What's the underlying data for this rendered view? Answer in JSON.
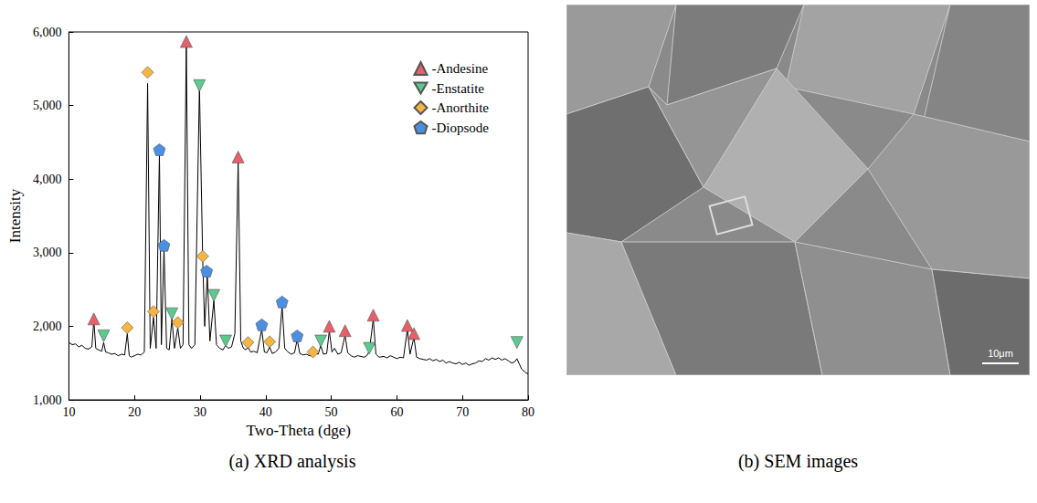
{
  "chart_data": {
    "type": "line",
    "x_label": "Two-Theta (dge)",
    "y_label": "Intensity",
    "xlim": [
      10,
      80
    ],
    "xticks": [
      10,
      20,
      30,
      40,
      50,
      60,
      70,
      80
    ],
    "ylim": [
      1000,
      6000
    ],
    "yticks": [
      1000,
      2000,
      3000,
      4000,
      5000,
      6000
    ],
    "grid": false,
    "legend": "upper right",
    "color": "#000000",
    "x": [
      10,
      10.5,
      11,
      11.5,
      12,
      12.5,
      13,
      13.5,
      13.8,
      14.1,
      14.5,
      15,
      15.3,
      15.6,
      16,
      16.5,
      17,
      17.5,
      18,
      18.5,
      18.9,
      19.2,
      19.5,
      20,
      20.5,
      21,
      21.5,
      22.0,
      22.4,
      22.9,
      23.3,
      23.8,
      24.1,
      24.5,
      24.9,
      25.3,
      25.7,
      26.1,
      26.6,
      27.0,
      27.4,
      27.9,
      28.3,
      28.7,
      29.2,
      29.9,
      30.4,
      30.7,
      31.1,
      31.5,
      32.1,
      32.5,
      33,
      33.5,
      33.9,
      34.3,
      34.8,
      35.3,
      35.8,
      36.2,
      36.6,
      37.0,
      37.3,
      37.7,
      38.2,
      38.7,
      39.4,
      39.8,
      40.2,
      40.6,
      41,
      41.5,
      42,
      42.5,
      42.9,
      43.4,
      43.9,
      44.4,
      44.8,
      45.2,
      45.7,
      46.2,
      46.7,
      47.2,
      47.6,
      48,
      48.4,
      48.8,
      49.3,
      49.7,
      50.1,
      50.5,
      51,
      51.5,
      52.1,
      52.5,
      53,
      53.5,
      54,
      54.5,
      55,
      55.4,
      55.8,
      56.4,
      56.8,
      57.3,
      58,
      58.5,
      59,
      59.5,
      60,
      60.5,
      61,
      61.6,
      62,
      62.6,
      63,
      63.5,
      64,
      64.5,
      65,
      65.5,
      66,
      66.5,
      67,
      67.5,
      68,
      68.5,
      69,
      69.5,
      70,
      70.5,
      71,
      71.5,
      72,
      72.5,
      73,
      73.5,
      74,
      74.5,
      75,
      75.5,
      76,
      76.5,
      77,
      77.5,
      78,
      78.3,
      78.7,
      79,
      79.5,
      80
    ],
    "values": [
      1780,
      1750,
      1760,
      1720,
      1740,
      1700,
      1690,
      1720,
      2080,
      1700,
      1680,
      1660,
      1780,
      1650,
      1640,
      1620,
      1630,
      1600,
      1620,
      1610,
      1900,
      1600,
      1580,
      1600,
      1620,
      1610,
      1650,
      5300,
      1700,
      2120,
      1700,
      4350,
      1750,
      3050,
      1700,
      1680,
      2100,
      1700,
      1980,
      1700,
      1750,
      5850,
      1750,
      1700,
      1750,
      5250,
      2900,
      2000,
      2700,
      1800,
      2350,
      1750,
      1700,
      1680,
      1740,
      1700,
      1720,
      1900,
      4250,
      1800,
      1700,
      1680,
      1720,
      1650,
      1660,
      1640,
      1960,
      1650,
      1640,
      1720,
      1630,
      1650,
      1700,
      2280,
      1700,
      1650,
      1620,
      1640,
      1820,
      1630,
      1610,
      1620,
      1600,
      1600,
      1630,
      1620,
      1740,
      1620,
      1630,
      1940,
      1650,
      1700,
      1620,
      1640,
      1880,
      1640,
      1600,
      1580,
      1600,
      1590,
      1580,
      1600,
      1660,
      2100,
      1620,
      1580,
      1590,
      1570,
      1600,
      1580,
      1560,
      1580,
      1570,
      1960,
      1620,
      1850,
      1580,
      1560,
      1550,
      1540,
      1560,
      1530,
      1550,
      1520,
      1540,
      1500,
      1520,
      1500,
      1490,
      1510,
      1480,
      1500,
      1470,
      1490,
      1500,
      1530,
      1520,
      1560,
      1540,
      1570,
      1550,
      1570,
      1540,
      1560,
      1530,
      1500,
      1520,
      1560,
      1480,
      1420,
      1380,
      1350
    ],
    "series": [
      {
        "name": "-Andesine",
        "type": "scatter",
        "marker": "triangle",
        "color": "#e5606a",
        "x": [
          13.8,
          27.9,
          35.8,
          49.7,
          52.1,
          56.4,
          61.6,
          62.6
        ],
        "values": [
          2100,
          5870,
          4300,
          2000,
          1940,
          2150,
          2010,
          1900
        ]
      },
      {
        "name": "-Enstatite",
        "type": "scatter",
        "marker": "triangle_down",
        "color": "#5cc98e",
        "x": [
          15.3,
          25.7,
          29.9,
          32.1,
          33.9,
          48.4,
          55.8,
          78.3
        ],
        "values": [
          1870,
          2170,
          5270,
          2420,
          1800,
          1800,
          1700,
          1780
        ]
      },
      {
        "name": "-Anorthite",
        "type": "scatter",
        "marker": "diamond",
        "color": "#f6b443",
        "x": [
          18.9,
          22.0,
          22.9,
          26.6,
          30.4,
          37.3,
          40.6,
          47.2
        ],
        "values": [
          1980,
          5450,
          2200,
          2050,
          2950,
          1780,
          1790,
          1650
        ]
      },
      {
        "name": "-Diopsode",
        "type": "scatter",
        "marker": "pentagon",
        "color": "#4b8fe2",
        "x": [
          23.8,
          24.5,
          31.0,
          39.4,
          42.5,
          44.8
        ],
        "values": [
          4400,
          3100,
          2750,
          2020,
          2330,
          1870
        ]
      }
    ]
  },
  "captions": [
    "(a) XRD analysis",
    "(b) SEM images"
  ],
  "sem": {
    "scale_bar": "10μm"
  }
}
